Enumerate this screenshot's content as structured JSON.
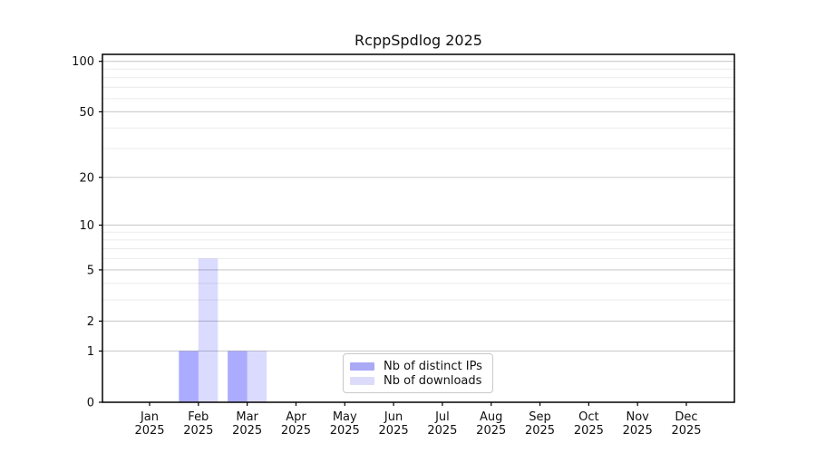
{
  "title": "RcppSpdlog 2025",
  "chart_data": {
    "type": "bar",
    "title": "RcppSpdlog 2025",
    "categories": [
      "Jan",
      "Feb",
      "Mar",
      "Apr",
      "May",
      "Jun",
      "Jul",
      "Aug",
      "Sep",
      "Oct",
      "Nov",
      "Dec"
    ],
    "x_tick_second_line": "2025",
    "series": [
      {
        "name": "Nb of distinct IPs",
        "swatch": "#a9a9f6",
        "fill": "rgba(0,0,255,0.33)",
        "values": [
          0,
          1,
          1,
          0,
          0,
          0,
          0,
          0,
          0,
          0,
          0,
          0
        ]
      },
      {
        "name": "Nb of downloads",
        "swatch": "#dcdcfa",
        "fill": "rgba(0,0,255,0.14)",
        "values": [
          0,
          6,
          1,
          0,
          0,
          0,
          0,
          0,
          0,
          0,
          0,
          0
        ]
      }
    ],
    "xlabel": "",
    "ylabel": "",
    "yscale": "log1p",
    "ylim": [
      0,
      110
    ],
    "y_tick_labels": [
      0,
      1,
      2,
      5,
      10,
      20,
      50,
      100
    ],
    "y_minor_gridlines": [
      3,
      4,
      6,
      7,
      8,
      9,
      30,
      40,
      60,
      70,
      80,
      90
    ],
    "grid": "horizontal",
    "legend_position": "lower-center-inside",
    "colors": {
      "grid_major": "#cccccc",
      "grid_minor": "#ebebeb",
      "spine": "#000000",
      "tick_text": "#111111",
      "legend_border": "#c9c9c9"
    }
  }
}
